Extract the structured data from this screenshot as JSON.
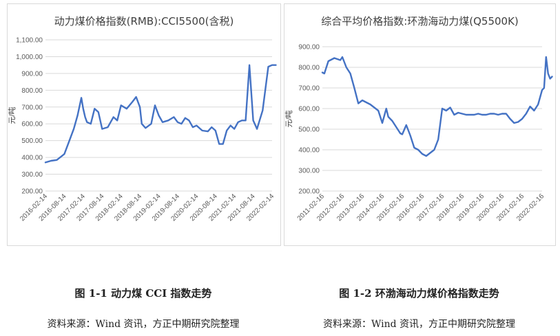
{
  "charts": [
    {
      "caption": "图 1-1  动力煤 CCI 指数走势",
      "source": "资料来源：Wind 资讯，方正中期研究院整理"
    },
    {
      "caption": "图 1-2  环渤海动力煤价格指数走势",
      "source": "资料来源：Wind 资讯，方正中期研究院整理"
    }
  ],
  "chart_data": [
    {
      "type": "line",
      "title": "动力煤价格指数(RMB):CCI5500(含税)",
      "ylabel": "元/吨",
      "xlabel": "",
      "ylim": [
        200,
        1100
      ],
      "yticks": [
        "200.00",
        "300.00",
        "400.00",
        "500.00",
        "600.00",
        "700.00",
        "800.00",
        "900.00",
        "1,000.00",
        "1,100.00"
      ],
      "xticks": [
        "2016-02-14",
        "2016-08-14",
        "2017-02-14",
        "2017-08-14",
        "2018-02-14",
        "2018-08-14",
        "2019-02-14",
        "2019-08-14",
        "2020-02-14",
        "2020-08-14",
        "2021-02-14",
        "2021-08-14",
        "2022-02-14"
      ],
      "grid": true,
      "color": "#4472C4",
      "series": [
        {
          "x": [
            0,
            0.3,
            0.6,
            1.0,
            1.2,
            1.5,
            1.7,
            1.9,
            2.0,
            2.1,
            2.2,
            2.4,
            2.6,
            2.8,
            3.0,
            3.3,
            3.6,
            3.8,
            4.0,
            4.3,
            4.6,
            4.8,
            5.0,
            5.1,
            5.3,
            5.6,
            5.8,
            6.0,
            6.2,
            6.5,
            6.8,
            7.0,
            7.2,
            7.4,
            7.6,
            7.8,
            8.0,
            8.3,
            8.6,
            8.8,
            9.0,
            9.2,
            9.4,
            9.6,
            9.8,
            10.0,
            10.2,
            10.4,
            10.6,
            10.8,
            11.0,
            11.2,
            11.5,
            11.8,
            12.0,
            12.1,
            12.2
          ],
          "values": [
            370,
            380,
            385,
            420,
            480,
            570,
            650,
            755,
            690,
            640,
            610,
            600,
            690,
            670,
            570,
            580,
            640,
            620,
            710,
            690,
            730,
            760,
            700,
            600,
            575,
            600,
            710,
            650,
            610,
            620,
            640,
            610,
            600,
            635,
            620,
            580,
            590,
            560,
            555,
            580,
            560,
            480,
            480,
            560,
            590,
            570,
            610,
            620,
            620,
            950,
            620,
            570,
            680,
            940,
            950,
            950,
            950
          ]
        }
      ]
    },
    {
      "type": "line",
      "title": "综合平均价格指数:环渤海动力煤(Q5500K)",
      "ylabel": "元/吨",
      "xlabel": "",
      "ylim": [
        200,
        900
      ],
      "yticks": [
        "200.00",
        "300.00",
        "400.00",
        "500.00",
        "600.00",
        "700.00",
        "800.00",
        "900.00"
      ],
      "xticks": [
        "2011-02-16",
        "2012-02-16",
        "2013-02-16",
        "2014-02-16",
        "2015-02-16",
        "2016-02-16",
        "2017-02-16",
        "2018-02-16",
        "2019-02-16",
        "2020-02-16",
        "2021-02-16",
        "2022-02-16"
      ],
      "grid": true,
      "color": "#4472C4",
      "series": [
        {
          "x": [
            0,
            0.1,
            0.3,
            0.6,
            0.9,
            1.0,
            1.2,
            1.4,
            1.6,
            1.8,
            2.0,
            2.2,
            2.4,
            2.6,
            2.8,
            3.0,
            3.2,
            3.3,
            3.5,
            3.7,
            3.9,
            4.0,
            4.2,
            4.4,
            4.6,
            4.8,
            5.0,
            5.2,
            5.4,
            5.6,
            5.8,
            6.0,
            6.2,
            6.4,
            6.6,
            6.8,
            7.0,
            7.2,
            7.4,
            7.6,
            7.8,
            8.0,
            8.2,
            8.4,
            8.6,
            8.8,
            9.0,
            9.2,
            9.4,
            9.6,
            9.8,
            10.0,
            10.2,
            10.4,
            10.6,
            10.8,
            11.0,
            11.1,
            11.2,
            11.3,
            11.4,
            11.5
          ],
          "values": [
            775,
            770,
            830,
            845,
            835,
            850,
            800,
            770,
            700,
            625,
            640,
            630,
            620,
            605,
            590,
            530,
            600,
            560,
            540,
            510,
            480,
            475,
            520,
            470,
            410,
            400,
            380,
            370,
            385,
            400,
            450,
            600,
            590,
            605,
            570,
            580,
            575,
            570,
            570,
            570,
            575,
            570,
            570,
            575,
            575,
            570,
            575,
            575,
            550,
            530,
            535,
            550,
            575,
            610,
            590,
            620,
            690,
            700,
            850,
            770,
            745,
            755
          ]
        }
      ]
    }
  ]
}
